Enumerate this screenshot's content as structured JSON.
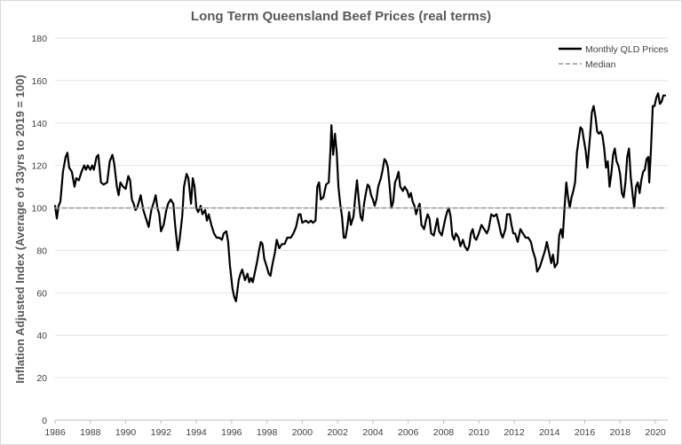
{
  "chart_data": {
    "type": "line",
    "title": "Long Term Queensland Beef Prices (real terms)",
    "xlabel": "",
    "ylabel": "Inflation Adjusted Index (Average of 33yrs to 2019 = 100)",
    "xlim": [
      1986,
      2020.7
    ],
    "ylim": [
      0,
      180
    ],
    "x_ticks": [
      "1986",
      "1988",
      "1990",
      "1992",
      "1994",
      "1996",
      "1998",
      "2000",
      "2002",
      "2004",
      "2006",
      "2008",
      "2010",
      "2012",
      "2014",
      "2016",
      "2018",
      "2020"
    ],
    "y_ticks": [
      "0",
      "20",
      "40",
      "60",
      "80",
      "100",
      "120",
      "140",
      "160",
      "180"
    ],
    "grid": "horizontal",
    "legend_position": "top-right",
    "series": [
      {
        "name": "Monthly QLD Prices",
        "color": "#000000",
        "style": "solid",
        "points": [
          [
            1986.0,
            101
          ],
          [
            1986.1,
            95
          ],
          [
            1986.2,
            101
          ],
          [
            1986.3,
            103
          ],
          [
            1986.45,
            117
          ],
          [
            1986.6,
            124
          ],
          [
            1986.7,
            126
          ],
          [
            1986.8,
            119
          ],
          [
            1986.95,
            117
          ],
          [
            1987.1,
            110
          ],
          [
            1987.2,
            114
          ],
          [
            1987.35,
            113
          ],
          [
            1987.5,
            117
          ],
          [
            1987.65,
            120
          ],
          [
            1987.75,
            118
          ],
          [
            1987.85,
            120
          ],
          [
            1988.0,
            118
          ],
          [
            1988.1,
            120
          ],
          [
            1988.2,
            118
          ],
          [
            1988.35,
            124
          ],
          [
            1988.45,
            125
          ],
          [
            1988.6,
            112
          ],
          [
            1988.75,
            111
          ],
          [
            1988.95,
            112
          ],
          [
            1989.1,
            122
          ],
          [
            1989.25,
            125
          ],
          [
            1989.35,
            121
          ],
          [
            1989.5,
            110
          ],
          [
            1989.6,
            106
          ],
          [
            1989.7,
            112
          ],
          [
            1989.85,
            110
          ],
          [
            1990.0,
            109
          ],
          [
            1990.15,
            115
          ],
          [
            1990.25,
            113
          ],
          [
            1990.35,
            104
          ],
          [
            1990.45,
            102
          ],
          [
            1990.55,
            99
          ],
          [
            1990.65,
            100
          ],
          [
            1990.75,
            103
          ],
          [
            1990.85,
            106
          ],
          [
            1991.0,
            99
          ],
          [
            1991.15,
            95
          ],
          [
            1991.3,
            91
          ],
          [
            1991.45,
            99
          ],
          [
            1991.6,
            103
          ],
          [
            1991.7,
            106
          ],
          [
            1991.8,
            100
          ],
          [
            1991.9,
            97
          ],
          [
            1992.0,
            89
          ],
          [
            1992.15,
            92
          ],
          [
            1992.3,
            99
          ],
          [
            1992.4,
            102
          ],
          [
            1992.55,
            104
          ],
          [
            1992.7,
            102
          ],
          [
            1992.8,
            92
          ],
          [
            1992.95,
            80
          ],
          [
            1993.05,
            85
          ],
          [
            1993.2,
            96
          ],
          [
            1993.3,
            110
          ],
          [
            1993.45,
            116
          ],
          [
            1993.55,
            114
          ],
          [
            1993.7,
            102
          ],
          [
            1993.8,
            114
          ],
          [
            1993.9,
            110
          ],
          [
            1994.0,
            100
          ],
          [
            1994.1,
            98
          ],
          [
            1994.25,
            101
          ],
          [
            1994.35,
            97
          ],
          [
            1994.5,
            99
          ],
          [
            1994.6,
            94
          ],
          [
            1994.7,
            97
          ],
          [
            1994.85,
            92
          ],
          [
            1995.0,
            88
          ],
          [
            1995.15,
            86
          ],
          [
            1995.3,
            86
          ],
          [
            1995.45,
            85
          ],
          [
            1995.55,
            88
          ],
          [
            1995.7,
            89
          ],
          [
            1995.8,
            84
          ],
          [
            1995.9,
            73
          ],
          [
            1996.05,
            62
          ],
          [
            1996.15,
            58
          ],
          [
            1996.25,
            56
          ],
          [
            1996.4,
            66
          ],
          [
            1996.5,
            69
          ],
          [
            1996.6,
            71
          ],
          [
            1996.75,
            66
          ],
          [
            1996.9,
            69
          ],
          [
            1997.0,
            65
          ],
          [
            1997.1,
            67
          ],
          [
            1997.2,
            65
          ],
          [
            1997.3,
            69
          ],
          [
            1997.45,
            75
          ],
          [
            1997.55,
            80
          ],
          [
            1997.65,
            84
          ],
          [
            1997.75,
            83
          ],
          [
            1997.85,
            76
          ],
          [
            1998.0,
            72
          ],
          [
            1998.1,
            69
          ],
          [
            1998.2,
            68
          ],
          [
            1998.3,
            73
          ],
          [
            1998.45,
            79
          ],
          [
            1998.55,
            85
          ],
          [
            1998.7,
            81
          ],
          [
            1998.85,
            83
          ],
          [
            1999.0,
            83
          ],
          [
            1999.15,
            86
          ],
          [
            1999.35,
            86
          ],
          [
            1999.5,
            88
          ],
          [
            1999.65,
            91
          ],
          [
            1999.8,
            97
          ],
          [
            1999.9,
            97
          ],
          [
            2000.0,
            93
          ],
          [
            2000.2,
            94
          ],
          [
            2000.35,
            93
          ],
          [
            2000.5,
            94
          ],
          [
            2000.6,
            93
          ],
          [
            2000.75,
            94
          ],
          [
            2000.85,
            110
          ],
          [
            2000.95,
            112
          ],
          [
            2001.05,
            104
          ],
          [
            2001.2,
            105
          ],
          [
            2001.35,
            111
          ],
          [
            2001.5,
            112
          ],
          [
            2001.6,
            128
          ],
          [
            2001.65,
            139
          ],
          [
            2001.75,
            125
          ],
          [
            2001.85,
            135
          ],
          [
            2001.95,
            126
          ],
          [
            2002.05,
            110
          ],
          [
            2002.15,
            102
          ],
          [
            2002.25,
            96
          ],
          [
            2002.35,
            86
          ],
          [
            2002.45,
            86
          ],
          [
            2002.55,
            91
          ],
          [
            2002.65,
            98
          ],
          [
            2002.75,
            92
          ],
          [
            2002.9,
            96
          ],
          [
            2003.0,
            105
          ],
          [
            2003.1,
            113
          ],
          [
            2003.2,
            104
          ],
          [
            2003.3,
            96
          ],
          [
            2003.4,
            94
          ],
          [
            2003.5,
            102
          ],
          [
            2003.6,
            107
          ],
          [
            2003.7,
            111
          ],
          [
            2003.8,
            110
          ],
          [
            2003.9,
            106
          ],
          [
            2004.0,
            104
          ],
          [
            2004.1,
            101
          ],
          [
            2004.2,
            104
          ],
          [
            2004.3,
            110
          ],
          [
            2004.45,
            114
          ],
          [
            2004.55,
            118
          ],
          [
            2004.65,
            123
          ],
          [
            2004.75,
            122
          ],
          [
            2004.85,
            119
          ],
          [
            2004.95,
            110
          ],
          [
            2005.05,
            100
          ],
          [
            2005.15,
            103
          ],
          [
            2005.25,
            112
          ],
          [
            2005.35,
            114
          ],
          [
            2005.45,
            117
          ],
          [
            2005.55,
            110
          ],
          [
            2005.7,
            108
          ],
          [
            2005.8,
            110
          ],
          [
            2005.95,
            108
          ],
          [
            2006.05,
            105
          ],
          [
            2006.15,
            107
          ],
          [
            2006.25,
            103
          ],
          [
            2006.35,
            101
          ],
          [
            2006.45,
            97
          ],
          [
            2006.55,
            100
          ],
          [
            2006.65,
            102
          ],
          [
            2006.75,
            92
          ],
          [
            2006.9,
            90
          ],
          [
            2007.0,
            94
          ],
          [
            2007.1,
            97
          ],
          [
            2007.2,
            95
          ],
          [
            2007.3,
            88
          ],
          [
            2007.45,
            87
          ],
          [
            2007.55,
            91
          ],
          [
            2007.65,
            95
          ],
          [
            2007.75,
            89
          ],
          [
            2007.9,
            87
          ],
          [
            2008.0,
            91
          ],
          [
            2008.1,
            95
          ],
          [
            2008.2,
            98
          ],
          [
            2008.3,
            100
          ],
          [
            2008.4,
            96
          ],
          [
            2008.5,
            87
          ],
          [
            2008.6,
            85
          ],
          [
            2008.7,
            88
          ],
          [
            2008.85,
            86
          ],
          [
            2008.95,
            82
          ],
          [
            2009.1,
            85
          ],
          [
            2009.2,
            82
          ],
          [
            2009.35,
            80
          ],
          [
            2009.45,
            82
          ],
          [
            2009.55,
            88
          ],
          [
            2009.65,
            90
          ],
          [
            2009.75,
            86
          ],
          [
            2009.85,
            85
          ],
          [
            2010.0,
            88
          ],
          [
            2010.15,
            92
          ],
          [
            2010.3,
            90
          ],
          [
            2010.45,
            88
          ],
          [
            2010.55,
            90
          ],
          [
            2010.7,
            97
          ],
          [
            2010.85,
            96
          ],
          [
            2011.0,
            97
          ],
          [
            2011.15,
            92
          ],
          [
            2011.25,
            88
          ],
          [
            2011.35,
            86
          ],
          [
            2011.5,
            90
          ],
          [
            2011.6,
            97
          ],
          [
            2011.75,
            97
          ],
          [
            2011.85,
            92
          ],
          [
            2011.95,
            88
          ],
          [
            2012.05,
            88
          ],
          [
            2012.2,
            84
          ],
          [
            2012.35,
            90
          ],
          [
            2012.5,
            88
          ],
          [
            2012.65,
            86
          ],
          [
            2012.8,
            86
          ],
          [
            2012.95,
            84
          ],
          [
            2013.05,
            80
          ],
          [
            2013.2,
            76
          ],
          [
            2013.3,
            70
          ],
          [
            2013.45,
            72
          ],
          [
            2013.6,
            76
          ],
          [
            2013.75,
            80
          ],
          [
            2013.85,
            84
          ],
          [
            2014.0,
            78
          ],
          [
            2014.1,
            74
          ],
          [
            2014.2,
            78
          ],
          [
            2014.3,
            72
          ],
          [
            2014.45,
            74
          ],
          [
            2014.55,
            87
          ],
          [
            2014.65,
            90
          ],
          [
            2014.75,
            86
          ],
          [
            2014.85,
            100
          ],
          [
            2014.95,
            112
          ],
          [
            2015.05,
            105
          ],
          [
            2015.15,
            100
          ],
          [
            2015.25,
            105
          ],
          [
            2015.35,
            108
          ],
          [
            2015.45,
            112
          ],
          [
            2015.55,
            126
          ],
          [
            2015.65,
            132
          ],
          [
            2015.75,
            138
          ],
          [
            2015.85,
            137
          ],
          [
            2015.95,
            132
          ],
          [
            2016.05,
            127
          ],
          [
            2016.15,
            119
          ],
          [
            2016.3,
            134
          ],
          [
            2016.4,
            145
          ],
          [
            2016.5,
            148
          ],
          [
            2016.6,
            143
          ],
          [
            2016.7,
            136
          ],
          [
            2016.8,
            135
          ],
          [
            2016.9,
            136
          ],
          [
            2017.0,
            134
          ],
          [
            2017.1,
            128
          ],
          [
            2017.2,
            119
          ],
          [
            2017.3,
            122
          ],
          [
            2017.4,
            110
          ],
          [
            2017.5,
            116
          ],
          [
            2017.6,
            125
          ],
          [
            2017.7,
            128
          ],
          [
            2017.8,
            122
          ],
          [
            2017.9,
            120
          ],
          [
            2018.0,
            116
          ],
          [
            2018.1,
            107
          ],
          [
            2018.2,
            105
          ],
          [
            2018.3,
            112
          ],
          [
            2018.4,
            124
          ],
          [
            2018.5,
            128
          ],
          [
            2018.6,
            115
          ],
          [
            2018.7,
            107
          ],
          [
            2018.8,
            100
          ],
          [
            2018.9,
            110
          ],
          [
            2019.0,
            112
          ],
          [
            2019.1,
            107
          ],
          [
            2019.2,
            113
          ],
          [
            2019.3,
            117
          ],
          [
            2019.4,
            118
          ],
          [
            2019.5,
            123
          ],
          [
            2019.6,
            124
          ],
          [
            2019.65,
            112
          ],
          [
            2019.75,
            128
          ],
          [
            2019.85,
            148
          ],
          [
            2019.95,
            148
          ],
          [
            2020.05,
            152
          ],
          [
            2020.15,
            154
          ],
          [
            2020.25,
            149
          ],
          [
            2020.35,
            150
          ],
          [
            2020.45,
            153
          ],
          [
            2020.55,
            153
          ]
        ]
      },
      {
        "name": "Median",
        "color": "#999999",
        "style": "dashed",
        "points": [
          [
            1986.0,
            100
          ],
          [
            2020.6,
            100
          ]
        ]
      }
    ]
  }
}
